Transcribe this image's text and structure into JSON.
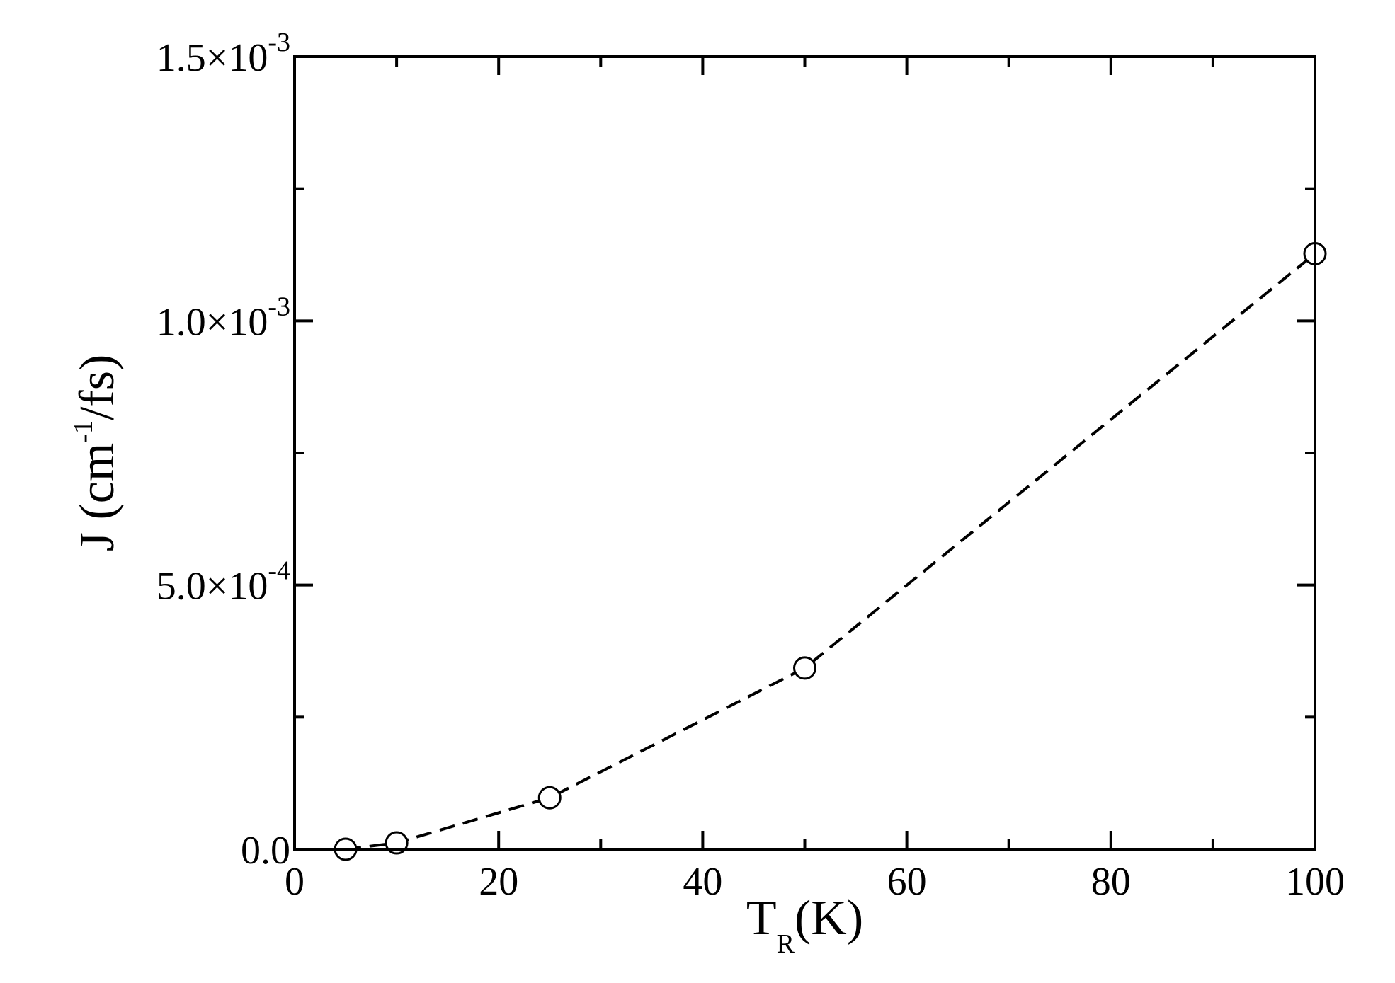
{
  "chart_data": {
    "type": "line",
    "title": "",
    "xlabel": {
      "main": "T",
      "sub": "R",
      "unit": "(K)"
    },
    "ylabel": {
      "prefix": "J (cm",
      "sup": "-1",
      "suffix": "/fs)"
    },
    "xlim": [
      0,
      100
    ],
    "ylim": [
      0,
      0.0015
    ],
    "grid": false,
    "legend": "none",
    "x_ticks": [
      {
        "value": 0,
        "label": "0"
      },
      {
        "value": 20,
        "label": "20"
      },
      {
        "value": 40,
        "label": "40"
      },
      {
        "value": 60,
        "label": "60"
      },
      {
        "value": 80,
        "label": "80"
      },
      {
        "value": 100,
        "label": "100"
      }
    ],
    "x_minor_ticks": [
      10,
      30,
      50,
      70,
      90
    ],
    "y_ticks": [
      {
        "value": 0,
        "label": "0.0",
        "mantissa": "",
        "exponent": ""
      },
      {
        "value": 0.0005,
        "label": "",
        "mantissa": "5.0×10",
        "exponent": "-4"
      },
      {
        "value": 0.001,
        "label": "",
        "mantissa": "1.0×10",
        "exponent": "-3"
      },
      {
        "value": 0.0015,
        "label": "",
        "mantissa": "1.5×10",
        "exponent": "-3"
      }
    ],
    "y_minor_ticks": [
      0.00025,
      0.00075,
      0.00125
    ],
    "series": [
      {
        "x": [
          5,
          10,
          25,
          50,
          100
        ],
        "y": [
          0.0,
          1.2e-05,
          9.75e-05,
          0.000343,
          0.001127
        ],
        "line_style": "dashed",
        "marker": "open-circle",
        "color": "#000000"
      }
    ]
  }
}
